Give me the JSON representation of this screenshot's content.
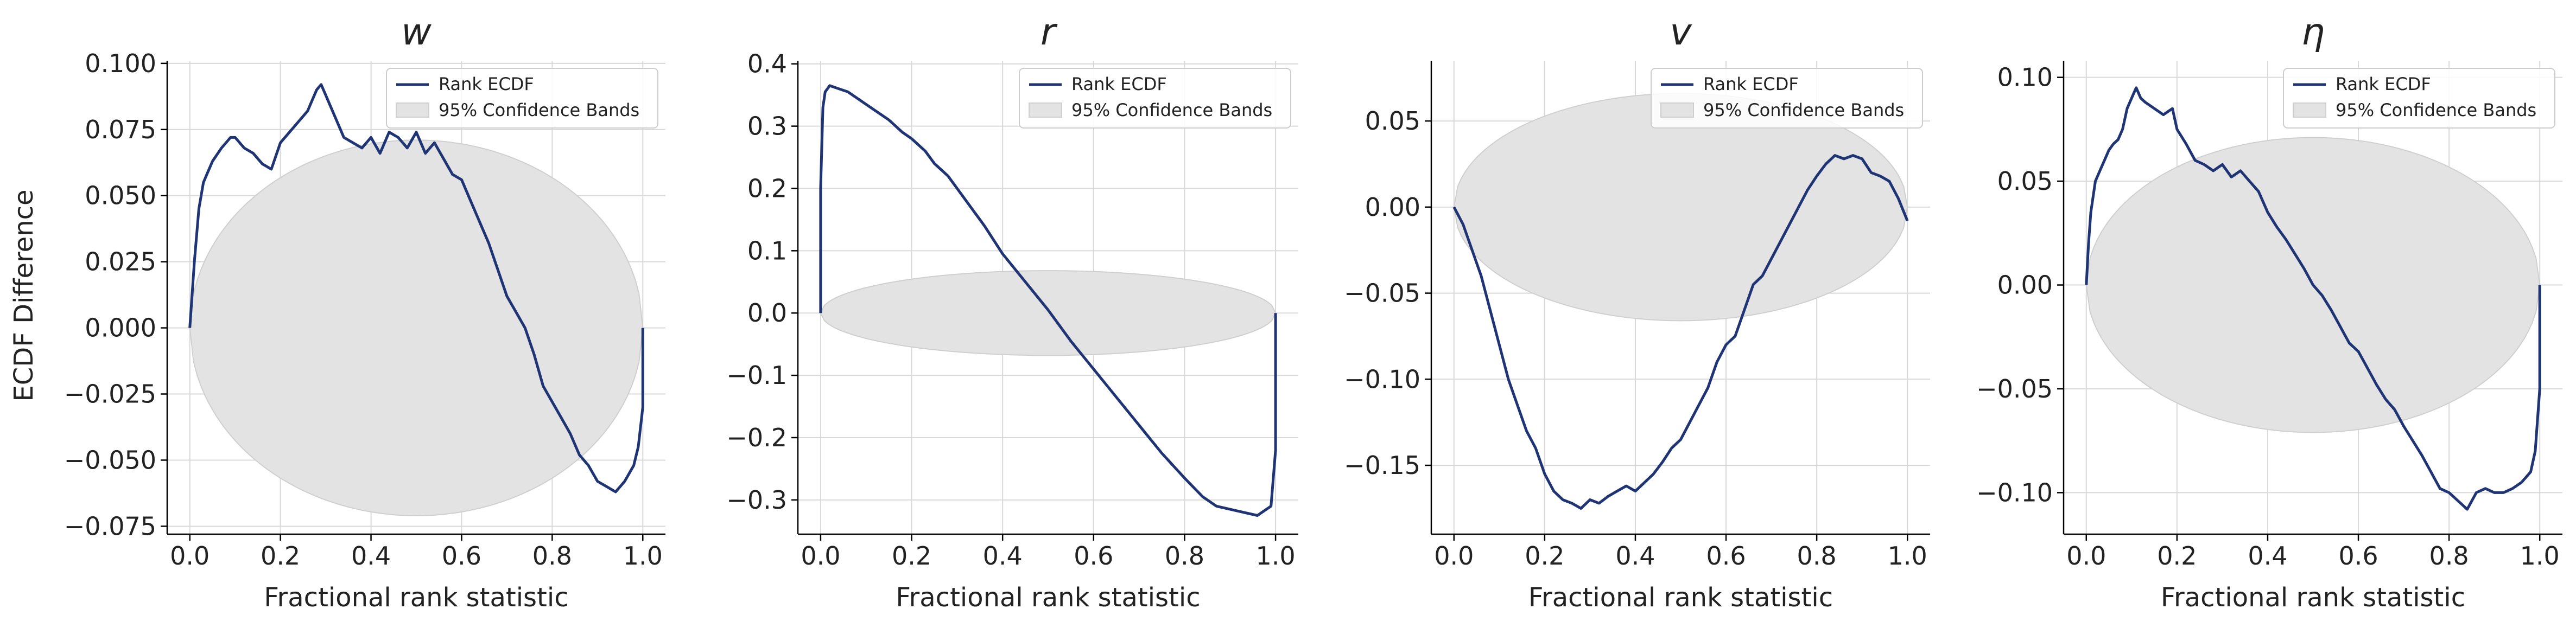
{
  "figure": {
    "shared_ylabel": "ECDF Difference"
  },
  "chart_data": [
    {
      "type": "line",
      "title": "w",
      "xlabel": "Fractional rank statistic",
      "ylabel": "ECDF Difference",
      "xlim": [
        -0.05,
        1.05
      ],
      "ylim": [
        -0.078,
        0.101
      ],
      "xticks": [
        0.0,
        0.2,
        0.4,
        0.6,
        0.8,
        1.0
      ],
      "xtick_labels": [
        "0.0",
        "0.2",
        "0.4",
        "0.6",
        "0.8",
        "1.0"
      ],
      "yticks": [
        -0.075,
        -0.05,
        -0.025,
        0.0,
        0.025,
        0.05,
        0.075,
        0.1
      ],
      "ytick_labels": [
        "−0.075",
        "−0.050",
        "−0.025",
        "0.000",
        "0.025",
        "0.050",
        "0.075",
        "0.100"
      ],
      "grid": true,
      "legend_position": "top-right",
      "legend": [
        "Rank ECDF",
        "95% Confidence Bands"
      ],
      "band_halfwidth": 0.071,
      "colors": {
        "line": "#1f3475",
        "band": "#e3e3e3",
        "band_edge": "#cfcfcf"
      },
      "series": [
        {
          "name": "Rank ECDF",
          "x": [
            0,
            0.01,
            0.02,
            0.03,
            0.05,
            0.07,
            0.09,
            0.1,
            0.12,
            0.14,
            0.16,
            0.18,
            0.2,
            0.22,
            0.24,
            0.26,
            0.28,
            0.29,
            0.3,
            0.32,
            0.34,
            0.36,
            0.38,
            0.4,
            0.42,
            0.44,
            0.46,
            0.48,
            0.5,
            0.52,
            0.54,
            0.56,
            0.58,
            0.6,
            0.62,
            0.64,
            0.66,
            0.68,
            0.7,
            0.72,
            0.74,
            0.76,
            0.78,
            0.8,
            0.82,
            0.84,
            0.86,
            0.88,
            0.9,
            0.92,
            0.94,
            0.96,
            0.98,
            0.99,
            1.0,
            1.0
          ],
          "y": [
            0,
            0.025,
            0.045,
            0.055,
            0.063,
            0.068,
            0.072,
            0.072,
            0.068,
            0.066,
            0.062,
            0.06,
            0.07,
            0.074,
            0.078,
            0.082,
            0.09,
            0.092,
            0.088,
            0.08,
            0.072,
            0.07,
            0.068,
            0.072,
            0.066,
            0.074,
            0.072,
            0.068,
            0.074,
            0.066,
            0.07,
            0.064,
            0.058,
            0.056,
            0.048,
            0.04,
            0.032,
            0.022,
            0.012,
            0.006,
            0.0,
            -0.01,
            -0.022,
            -0.028,
            -0.034,
            -0.04,
            -0.048,
            -0.052,
            -0.058,
            -0.06,
            -0.062,
            -0.058,
            -0.052,
            -0.045,
            -0.03,
            0.0
          ]
        }
      ]
    },
    {
      "type": "line",
      "title": "r",
      "xlabel": "Fractional rank statistic",
      "ylabel": "",
      "xlim": [
        -0.05,
        1.05
      ],
      "ylim": [
        -0.355,
        0.405
      ],
      "xticks": [
        0.0,
        0.2,
        0.4,
        0.6,
        0.8,
        1.0
      ],
      "xtick_labels": [
        "0.0",
        "0.2",
        "0.4",
        "0.6",
        "0.8",
        "1.0"
      ],
      "yticks": [
        -0.3,
        -0.2,
        -0.1,
        0.0,
        0.1,
        0.2,
        0.3,
        0.4
      ],
      "ytick_labels": [
        "−0.3",
        "−0.2",
        "−0.1",
        "0.0",
        "0.1",
        "0.2",
        "0.3",
        "0.4"
      ],
      "grid": true,
      "legend_position": "top-right",
      "legend": [
        "Rank ECDF",
        "95% Confidence Bands"
      ],
      "band_halfwidth": 0.068,
      "colors": {
        "line": "#1f3475",
        "band": "#e3e3e3",
        "band_edge": "#cfcfcf"
      },
      "series": [
        {
          "name": "Rank ECDF",
          "x": [
            0,
            0.0,
            0.005,
            0.01,
            0.02,
            0.04,
            0.06,
            0.08,
            0.1,
            0.12,
            0.15,
            0.18,
            0.2,
            0.23,
            0.25,
            0.28,
            0.3,
            0.33,
            0.36,
            0.4,
            0.45,
            0.5,
            0.55,
            0.6,
            0.65,
            0.7,
            0.75,
            0.8,
            0.84,
            0.87,
            0.9,
            0.93,
            0.96,
            0.97,
            0.98,
            0.99,
            1.0,
            1.0
          ],
          "y": [
            0,
            0.2,
            0.33,
            0.355,
            0.365,
            0.36,
            0.355,
            0.345,
            0.335,
            0.325,
            0.31,
            0.29,
            0.28,
            0.26,
            0.24,
            0.22,
            0.2,
            0.17,
            0.14,
            0.095,
            0.05,
            0.005,
            -0.045,
            -0.09,
            -0.135,
            -0.18,
            -0.225,
            -0.265,
            -0.295,
            -0.31,
            -0.315,
            -0.32,
            -0.325,
            -0.32,
            -0.315,
            -0.31,
            -0.22,
            0.0
          ]
        }
      ]
    },
    {
      "type": "line",
      "title": "v",
      "xlabel": "Fractional rank statistic",
      "ylabel": "",
      "xlim": [
        -0.05,
        1.05
      ],
      "ylim": [
        -0.19,
        0.085
      ],
      "xticks": [
        0.0,
        0.2,
        0.4,
        0.6,
        0.8,
        1.0
      ],
      "xtick_labels": [
        "0.0",
        "0.2",
        "0.4",
        "0.6",
        "0.8",
        "1.0"
      ],
      "yticks": [
        -0.15,
        -0.1,
        -0.05,
        0.0,
        0.05
      ],
      "ytick_labels": [
        "−0.15",
        "−0.10",
        "−0.05",
        "0.00",
        "0.05"
      ],
      "grid": true,
      "legend_position": "top-right",
      "legend": [
        "Rank ECDF",
        "95% Confidence Bands"
      ],
      "band_halfwidth": 0.066,
      "colors": {
        "line": "#1f3475",
        "band": "#e3e3e3",
        "band_edge": "#cfcfcf"
      },
      "series": [
        {
          "name": "Rank ECDF",
          "x": [
            0,
            0.02,
            0.04,
            0.06,
            0.08,
            0.1,
            0.12,
            0.14,
            0.16,
            0.18,
            0.2,
            0.22,
            0.24,
            0.26,
            0.28,
            0.3,
            0.32,
            0.34,
            0.36,
            0.38,
            0.4,
            0.42,
            0.44,
            0.46,
            0.48,
            0.5,
            0.52,
            0.54,
            0.56,
            0.58,
            0.6,
            0.62,
            0.64,
            0.66,
            0.68,
            0.7,
            0.72,
            0.74,
            0.76,
            0.78,
            0.8,
            0.82,
            0.84,
            0.86,
            0.88,
            0.9,
            0.92,
            0.94,
            0.96,
            0.98,
            1.0
          ],
          "y": [
            0,
            -0.01,
            -0.025,
            -0.04,
            -0.06,
            -0.08,
            -0.1,
            -0.115,
            -0.13,
            -0.14,
            -0.155,
            -0.165,
            -0.17,
            -0.172,
            -0.175,
            -0.17,
            -0.172,
            -0.168,
            -0.165,
            -0.162,
            -0.165,
            -0.16,
            -0.155,
            -0.148,
            -0.14,
            -0.135,
            -0.125,
            -0.115,
            -0.105,
            -0.09,
            -0.08,
            -0.075,
            -0.06,
            -0.045,
            -0.04,
            -0.03,
            -0.02,
            -0.01,
            0.0,
            0.01,
            0.018,
            0.025,
            0.03,
            0.028,
            0.03,
            0.028,
            0.02,
            0.018,
            0.015,
            0.005,
            -0.008
          ]
        }
      ]
    },
    {
      "type": "line",
      "title": "η",
      "xlabel": "Fractional rank statistic",
      "ylabel": "",
      "xlim": [
        -0.05,
        1.05
      ],
      "ylim": [
        -0.12,
        0.108
      ],
      "xticks": [
        0.0,
        0.2,
        0.4,
        0.6,
        0.8,
        1.0
      ],
      "xtick_labels": [
        "0.0",
        "0.2",
        "0.4",
        "0.6",
        "0.8",
        "1.0"
      ],
      "yticks": [
        -0.1,
        -0.05,
        0.0,
        0.05,
        0.1
      ],
      "ytick_labels": [
        "−0.10",
        "−0.05",
        "0.00",
        "0.05",
        "0.10"
      ],
      "grid": true,
      "legend_position": "top-right",
      "legend": [
        "Rank ECDF",
        "95% Confidence Bands"
      ],
      "band_halfwidth": 0.071,
      "colors": {
        "line": "#1f3475",
        "band": "#e3e3e3",
        "band_edge": "#cfcfcf"
      },
      "series": [
        {
          "name": "Rank ECDF",
          "x": [
            0,
            0.005,
            0.01,
            0.02,
            0.03,
            0.04,
            0.05,
            0.06,
            0.07,
            0.08,
            0.09,
            0.1,
            0.11,
            0.12,
            0.13,
            0.15,
            0.17,
            0.19,
            0.2,
            0.22,
            0.24,
            0.26,
            0.28,
            0.3,
            0.32,
            0.34,
            0.36,
            0.38,
            0.4,
            0.42,
            0.44,
            0.46,
            0.48,
            0.5,
            0.52,
            0.54,
            0.56,
            0.58,
            0.6,
            0.62,
            0.64,
            0.66,
            0.68,
            0.7,
            0.72,
            0.74,
            0.76,
            0.78,
            0.8,
            0.82,
            0.84,
            0.86,
            0.88,
            0.9,
            0.92,
            0.94,
            0.96,
            0.98,
            0.99,
            1.0,
            1.0
          ],
          "y": [
            0,
            0.02,
            0.035,
            0.05,
            0.055,
            0.06,
            0.065,
            0.068,
            0.07,
            0.075,
            0.085,
            0.09,
            0.095,
            0.09,
            0.088,
            0.085,
            0.082,
            0.085,
            0.075,
            0.068,
            0.06,
            0.058,
            0.055,
            0.058,
            0.052,
            0.055,
            0.05,
            0.045,
            0.035,
            0.028,
            0.022,
            0.015,
            0.008,
            0.0,
            -0.005,
            -0.012,
            -0.02,
            -0.028,
            -0.032,
            -0.04,
            -0.048,
            -0.055,
            -0.06,
            -0.068,
            -0.075,
            -0.082,
            -0.09,
            -0.098,
            -0.1,
            -0.104,
            -0.108,
            -0.1,
            -0.098,
            -0.1,
            -0.1,
            -0.098,
            -0.095,
            -0.09,
            -0.08,
            -0.05,
            0.0
          ]
        }
      ]
    }
  ]
}
